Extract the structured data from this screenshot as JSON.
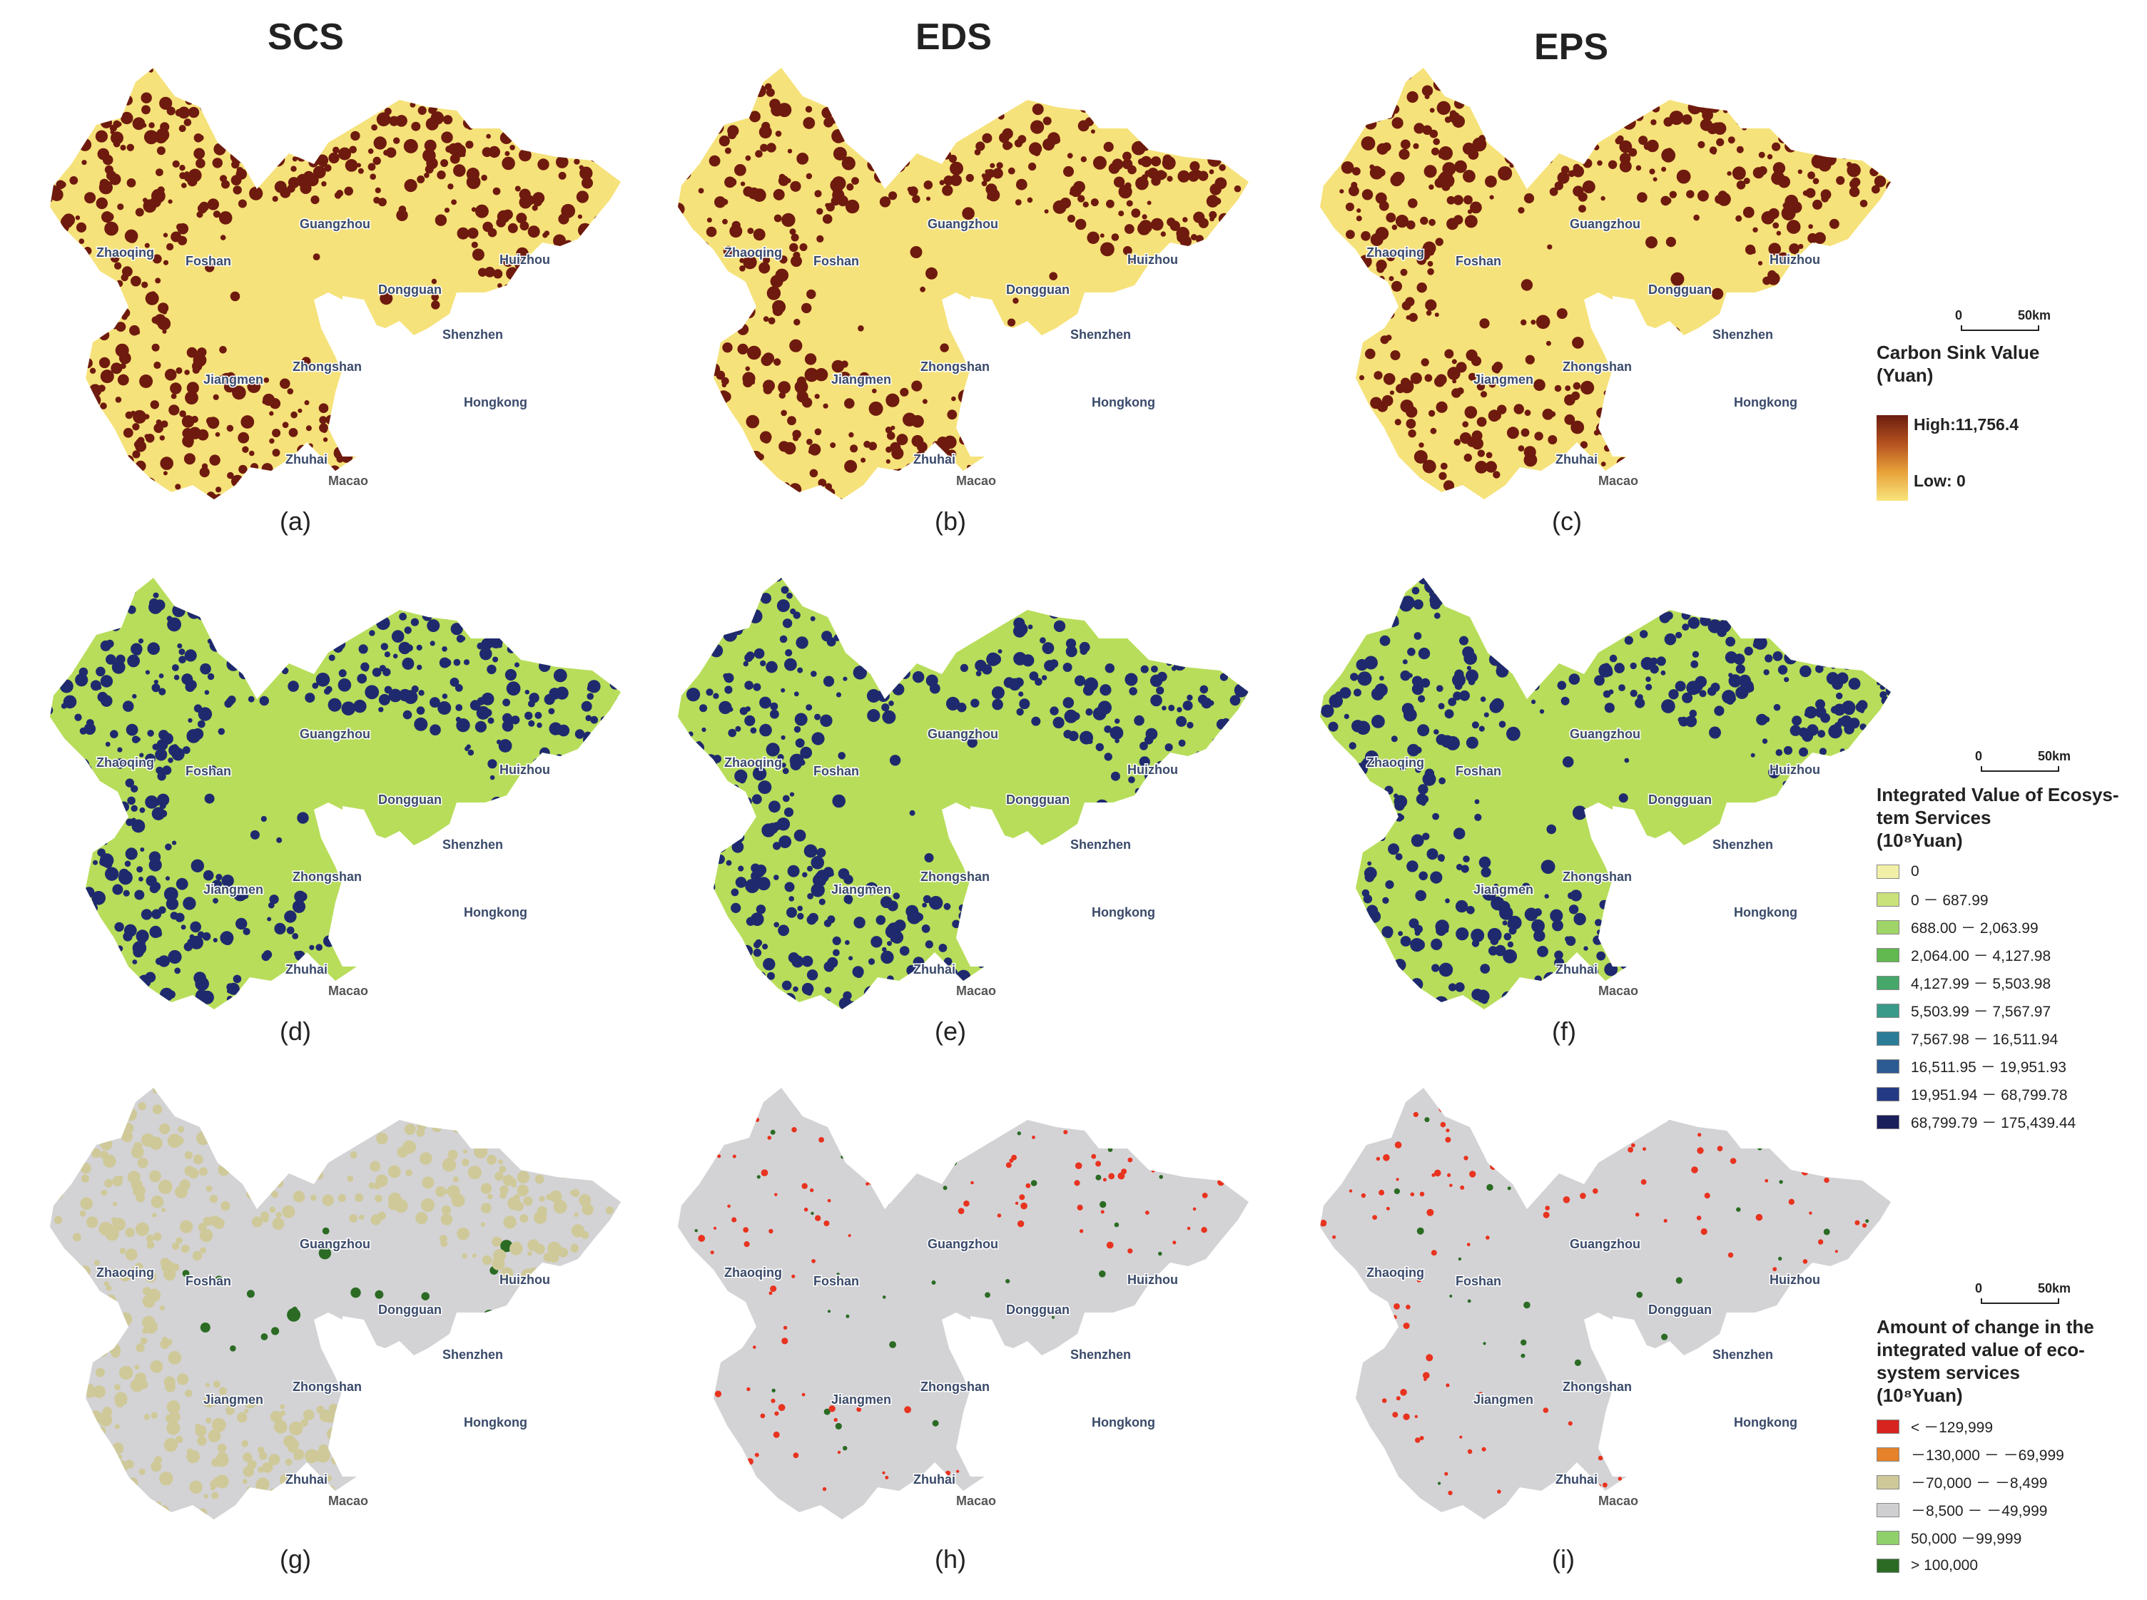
{
  "columns": {
    "scs": "SCS",
    "eds": "EDS",
    "eps": "EPS"
  },
  "panels": {
    "a": "(a)",
    "b": "(b)",
    "c": "(c)",
    "d": "(d)",
    "e": "(e)",
    "f": "(f)",
    "g": "(g)",
    "h": "(h)",
    "i": "(i)"
  },
  "cities": {
    "zhaoqing": "Zhaoqing",
    "foshan": "Foshan",
    "guangzhou": "Guangzhou",
    "huizhou": "Huizhou",
    "dongguan": "Dongguan",
    "shenzhen": "Shenzhen",
    "zhongshan": "Zhongshan",
    "jiangmen": "Jiangmen",
    "hongkong": "Hongkong",
    "zhuhai": "Zhuhai",
    "macao": "Macao"
  },
  "scale": {
    "zero": "0",
    "fifty": "50km"
  },
  "legend_carbon": {
    "title_line1": "Carbon Sink Value",
    "title_line2": "(Yuan)",
    "high": "High:11,756.4",
    "low": "Low: 0",
    "colors": {
      "high": "#6b1d0f",
      "low": "#f9e47c"
    }
  },
  "legend_integrated": {
    "title_line1": "Integrated Value of Ecosys-",
    "title_line2": "tem Services",
    "title_line3": "(10⁸Yuan)",
    "items": [
      {
        "label": "0",
        "color": "#f2f0a8"
      },
      {
        "label": "0 － 687.99",
        "color": "#c9e27a"
      },
      {
        "label": "688.00 － 2,063.99",
        "color": "#9fd467"
      },
      {
        "label": "2,064.00 － 4,127.98",
        "color": "#62b94f"
      },
      {
        "label": "4,127.99 － 5,503.98",
        "color": "#45a86a"
      },
      {
        "label": "5,503.99 － 7,567.97",
        "color": "#3a9a8a"
      },
      {
        "label": "7,567.98 － 16,511.94",
        "color": "#2b7c97"
      },
      {
        "label": "16,511.95 － 19,951.93",
        "color": "#2c5a92"
      },
      {
        "label": "19,951.94 － 68,799.78",
        "color": "#243a84"
      },
      {
        "label": "68,799.79 － 175,439.44",
        "color": "#1b1f5c"
      }
    ]
  },
  "legend_change": {
    "title_line1": "Amount of change in the",
    "title_line2": "integrated value of eco-",
    "title_line3": "system services",
    "title_line4": "(10⁸Yuan)",
    "items": [
      {
        "label": "< －129,999",
        "color": "#d8241f"
      },
      {
        "label": "－130,000 － －69,999",
        "color": "#e5822a"
      },
      {
        "label": "－70,000 － －8,499",
        "color": "#cfc99a"
      },
      {
        "label": "－8,500 － －49,999",
        "color": "#cfcfd2"
      },
      {
        "label": "50,000 －99,999",
        "color": "#8fd06b"
      },
      {
        "label": "> 100,000",
        "color": "#2b6b24"
      }
    ]
  },
  "colors": {
    "carbon_dark": "#6e1a0e",
    "carbon_light": "#f6e27a",
    "integrated_dark": "#1f2a6e",
    "integrated_light": "#b8dd5a",
    "change_base": "#d3d3d6",
    "change_tan": "#cfc99a",
    "change_red": "#e8331f",
    "change_green": "#2b6b24"
  }
}
